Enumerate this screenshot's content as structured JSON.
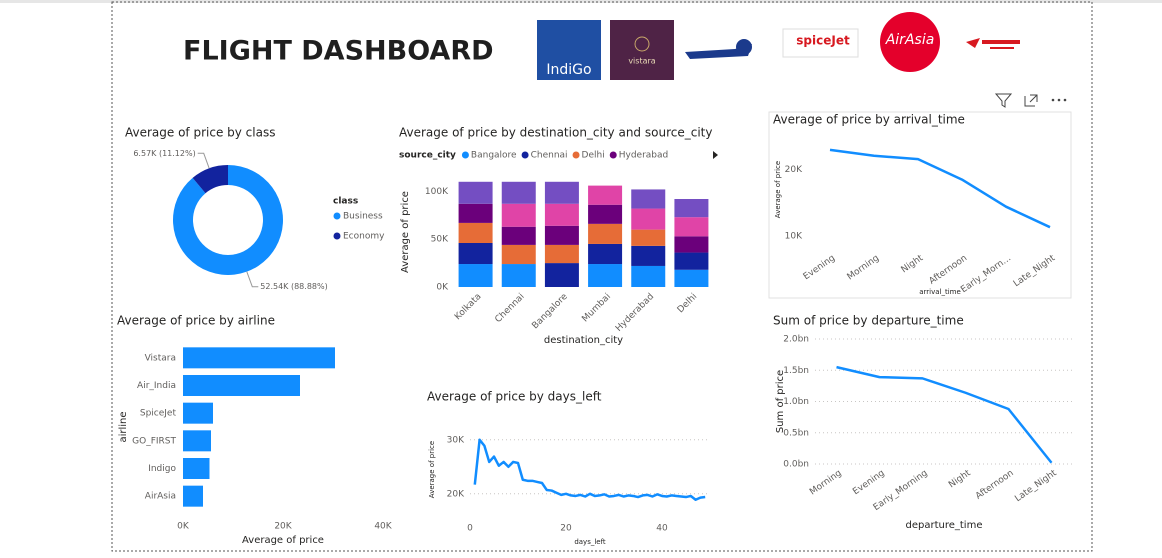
{
  "header": {
    "title": "FLIGHT DASHBOARD",
    "logos": [
      "IndiGo",
      "vistara",
      "spiceJet",
      "AirAsia"
    ]
  },
  "chart_data": [
    {
      "type": "donut",
      "title": "Average of price by class",
      "legend_title": "class",
      "categories": [
        "Business",
        "Economy"
      ],
      "values": [
        52540,
        6570
      ],
      "value_labels": [
        "52.54K (88.88%)",
        "6.57K (11.12%)"
      ],
      "colors": [
        "#118dff",
        "#12239e"
      ]
    },
    {
      "type": "stacked_bar",
      "title": "Average of price by destination_city and source_city",
      "legend_title": "source_city",
      "categories": [
        "Kolkata",
        "Chennai",
        "Bangalore",
        "Mumbai",
        "Hyderabad",
        "Delhi"
      ],
      "series": [
        {
          "name": "Bangalore",
          "color": "#118dff",
          "values": [
            24000,
            24000,
            null,
            24000,
            22000,
            18000
          ]
        },
        {
          "name": "Chennai",
          "color": "#12239e",
          "values": [
            22000,
            null,
            25000,
            21000,
            21000,
            18000
          ]
        },
        {
          "name": "Delhi",
          "color": "#e66c37",
          "values": [
            21000,
            20000,
            19000,
            21000,
            17000,
            null
          ]
        },
        {
          "name": "Hyderabad",
          "color": "#6b007b",
          "values": [
            20000,
            19000,
            20000,
            20000,
            null,
            17000
          ]
        },
        {
          "name": null,
          "color": "#e044a7",
          "values": [
            null,
            24000,
            23000,
            20000,
            22000,
            20000
          ]
        },
        {
          "name": null,
          "color": "#744ec2",
          "values": [
            23000,
            23000,
            23000,
            null,
            20000,
            19000
          ]
        }
      ],
      "ylim": [
        0,
        115000
      ],
      "yticks": [
        {
          "value": 0,
          "label": "0K"
        },
        {
          "value": 50000,
          "label": "50K"
        },
        {
          "value": 100000,
          "label": "100K"
        }
      ],
      "xlabel": "destination_city",
      "ylabel": "Average of price",
      "grid": false
    },
    {
      "type": "line",
      "title": "Average of price by arrival_time",
      "categories": [
        "Evening",
        "Morning",
        "Night",
        "Afternoon",
        "Early_Morn…",
        "Late_Night"
      ],
      "values": [
        23000,
        22100,
        21600,
        18500,
        14400,
        11300
      ],
      "color": "#118dff",
      "ylim": [
        8000,
        26000
      ],
      "yticks": [
        {
          "value": 10000,
          "label": "10K"
        },
        {
          "value": 20000,
          "label": "20K"
        }
      ],
      "xlabel": "arrival_time",
      "ylabel": "Average of price",
      "grid": false
    },
    {
      "type": "line",
      "title": "Sum of price by departure_time",
      "categories": [
        "Morning",
        "Evening",
        "Early_Morning",
        "Night",
        "Afternoon",
        "Late_Night"
      ],
      "values": [
        1550000000,
        1390000000,
        1370000000,
        1140000000,
        880000000,
        20000000
      ],
      "color": "#118dff",
      "ylim": [
        0,
        2000000000
      ],
      "yticks": [
        {
          "value": 0,
          "label": "0.0bn"
        },
        {
          "value": 500000000,
          "label": "0.5bn"
        },
        {
          "value": 1000000000,
          "label": "1.0bn"
        },
        {
          "value": 1500000000,
          "label": "1.5bn"
        },
        {
          "value": 2000000000,
          "label": "2.0bn"
        }
      ],
      "xlabel": "departure_time",
      "ylabel": "Sum of price",
      "grid": true
    },
    {
      "type": "hbar",
      "title": "Average of price by airline",
      "categories": [
        "Vistara",
        "Air_India",
        "SpiceJet",
        "GO_FIRST",
        "Indigo",
        "AirAsia"
      ],
      "values": [
        30400,
        23400,
        6000,
        5600,
        5300,
        4000
      ],
      "color": "#118dff",
      "xlim": [
        0,
        40000
      ],
      "xticks": [
        {
          "value": 0,
          "label": "0K"
        },
        {
          "value": 20000,
          "label": "20K"
        },
        {
          "value": 40000,
          "label": "40K"
        }
      ],
      "xlabel": "Average of price",
      "ylabel": "airline",
      "grid": false
    },
    {
      "type": "line",
      "title": "Average of price by days_left",
      "x": [
        1,
        2,
        3,
        4,
        5,
        6,
        7,
        8,
        9,
        10,
        11,
        12,
        13,
        14,
        15,
        16,
        17,
        18,
        19,
        20,
        21,
        22,
        23,
        24,
        25,
        26,
        27,
        28,
        29,
        30,
        31,
        32,
        33,
        34,
        35,
        36,
        37,
        38,
        39,
        40,
        41,
        42,
        43,
        44,
        45,
        46,
        47,
        48,
        49
      ],
      "values": [
        21700,
        30000,
        28900,
        25900,
        26900,
        25200,
        25900,
        25000,
        25900,
        25700,
        22600,
        22400,
        22400,
        22200,
        22000,
        20700,
        20600,
        20200,
        19800,
        20000,
        19700,
        19600,
        19800,
        19500,
        20000,
        19600,
        19700,
        19900,
        19500,
        19600,
        19800,
        19500,
        19700,
        19600,
        19400,
        19700,
        19800,
        19500,
        19900,
        19600,
        19500,
        19700,
        19600,
        19500,
        19400,
        19600,
        18900,
        19300,
        19400
      ],
      "color": "#118dff",
      "xlim": [
        0,
        50
      ],
      "xticks": [
        0,
        20,
        40
      ],
      "ylim": [
        17000,
        32000
      ],
      "yticks": [
        {
          "value": 20000,
          "label": "20K"
        },
        {
          "value": 30000,
          "label": "30K"
        }
      ],
      "xlabel": "days_left",
      "ylabel": "Average of price",
      "grid": true
    }
  ]
}
